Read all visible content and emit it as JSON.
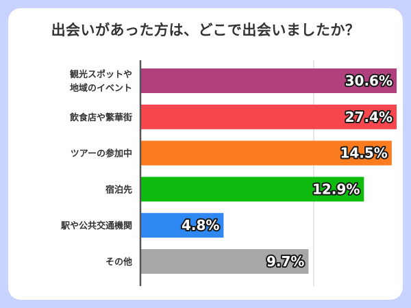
{
  "chart_data": {
    "type": "bar",
    "orientation": "horizontal",
    "title": "出会いがあった方は、どこで出会いましたか？",
    "categories": [
      [
        "観光スポットや",
        "地域のイベント"
      ],
      [
        "飲食店や繁華街"
      ],
      [
        "ツアーの参加中"
      ],
      [
        "宿泊先"
      ],
      [
        "駅や公共交通機関"
      ],
      [
        "その他"
      ]
    ],
    "values": [
      30.6,
      27.4,
      14.5,
      12.9,
      4.8,
      9.7
    ],
    "value_labels": [
      "30.6%",
      "27.4%",
      "14.5%",
      "12.9%",
      "4.8%",
      "9.7%"
    ],
    "colors": [
      "#b0407e",
      "#f5474d",
      "#fb7c1e",
      "#10bb10",
      "#2f88f2",
      "#a8a8a8"
    ],
    "xlim": [
      0,
      30
    ],
    "grid": true,
    "grid_color": "#dddddd"
  }
}
